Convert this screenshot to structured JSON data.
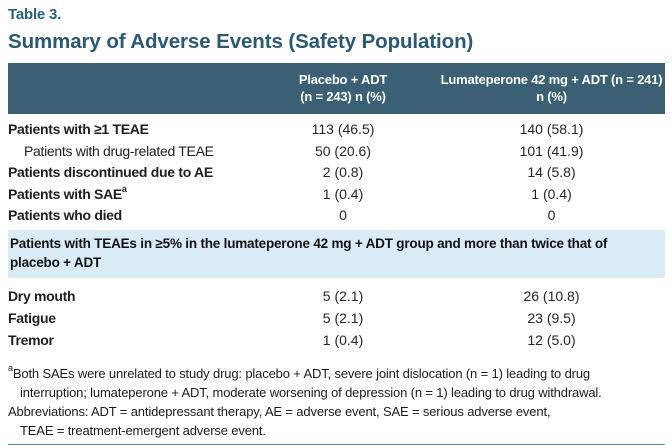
{
  "colors": {
    "header-bg": "#3b5f73",
    "section-bg": "#d9ecf6",
    "title-color": "#2b5873",
    "label-color": "#27617c",
    "rule-color": "#5d8196",
    "text-color": "#1f1f1f"
  },
  "table_label": "Table 3.",
  "title": "Summary of Adverse Events (Safety Population)",
  "header": {
    "col_placebo": {
      "line1": "Placebo + ADT",
      "line2": "(n = 243) n (%)"
    },
    "col_lumateperone": {
      "line1": "Lumateperone 42 mg + ADT (n = 241)",
      "line2": "n (%)"
    }
  },
  "rows_top": [
    {
      "label": "Patients with ≥1 TEAE",
      "placebo": "113 (46.5)",
      "lumateperone": "140 (58.1)"
    },
    {
      "label": "Patients with drug-related TEAE",
      "indent": true,
      "regular": true,
      "placebo": "50 (20.6)",
      "lumateperone": "101 (41.9)"
    },
    {
      "label": "Patients discontinued due to AE",
      "placebo": "2 (0.8)",
      "lumateperone": "14 (5.8)"
    },
    {
      "label": "Patients with SAE",
      "label_sup": "a",
      "placebo": "1 (0.4)",
      "lumateperone": "1 (0.4)"
    },
    {
      "label": "Patients who died",
      "placebo": "0",
      "lumateperone": "0"
    }
  ],
  "section_header": {
    "line1": "Patients with TEAEs in ≥5% in the lumateperone 42 mg + ADT group and more than twice that of",
    "line2": "placebo + ADT"
  },
  "rows_bottom": [
    {
      "label": "Dry mouth",
      "placebo": "5 (2.1)",
      "lumateperone": "26 (10.8)"
    },
    {
      "label": "Fatigue",
      "placebo": "5 (2.1)",
      "lumateperone": "23 (9.5)"
    },
    {
      "label": "Tremor",
      "placebo": "1 (0.4)",
      "lumateperone": "12 (5.0)"
    }
  ],
  "footnote_lines": [
    {
      "sup": "a",
      "text": "Both SAEs were unrelated to study drug: placebo + ADT, severe joint dislocation (n = 1) leading to drug"
    },
    {
      "text": "interruption; lumateperone + ADT, moderate worsening of depression (n = 1) leading to drug withdrawal.",
      "indent": true
    },
    {
      "text": "Abbreviations: ADT = antidepressant therapy, AE = adverse event, SAE = serious adverse event,"
    },
    {
      "text": "TEAE = treatment-emergent adverse event.",
      "indent": true
    }
  ]
}
